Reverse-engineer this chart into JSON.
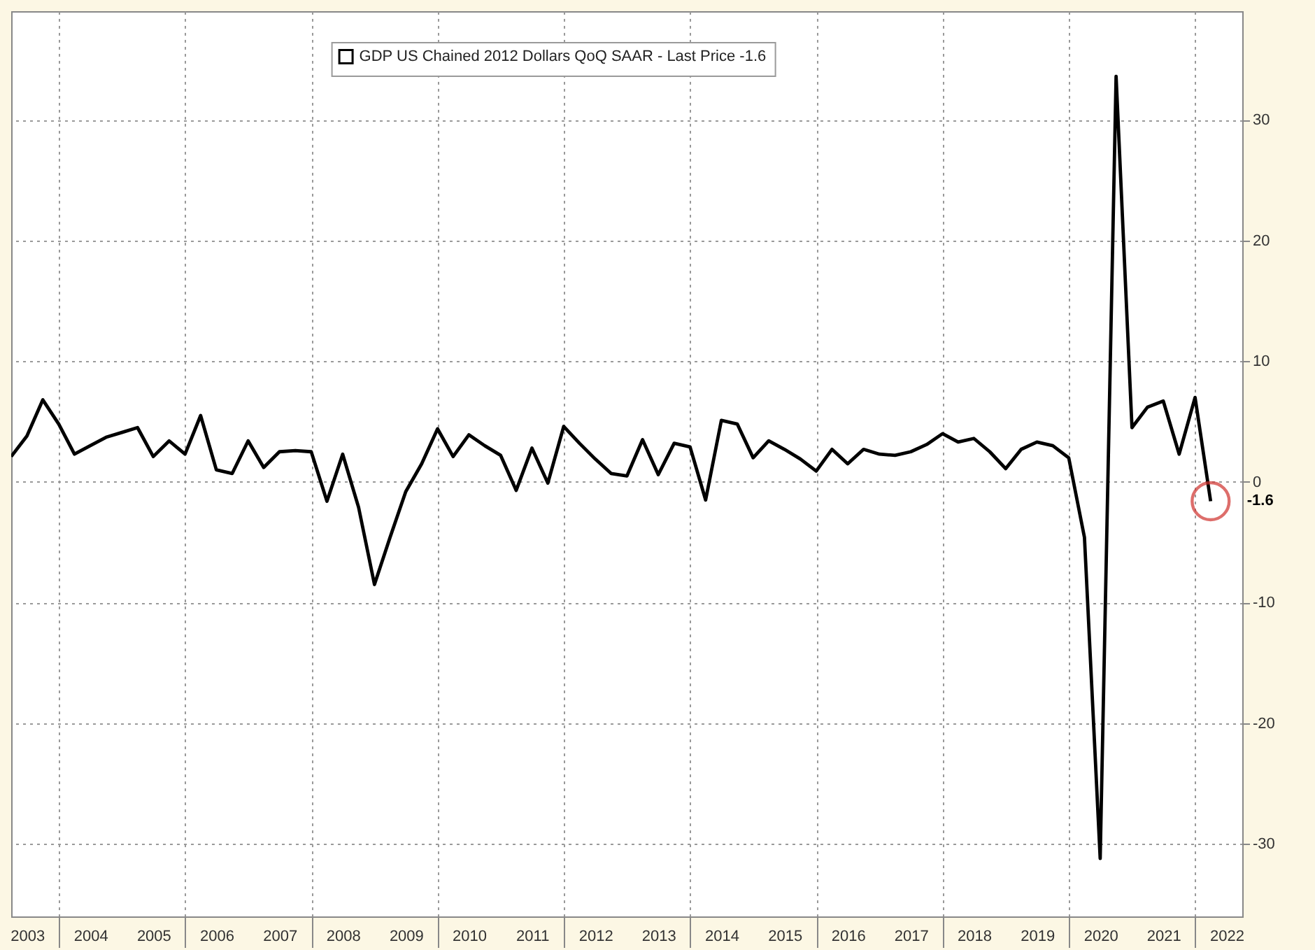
{
  "chart_data": {
    "type": "line",
    "x": [
      "2003-03-31",
      "2003-06-30",
      "2003-09-30",
      "2003-12-31",
      "2004-03-31",
      "2004-06-30",
      "2004-09-30",
      "2004-12-31",
      "2005-03-31",
      "2005-06-30",
      "2005-09-30",
      "2005-12-31",
      "2006-03-31",
      "2006-06-30",
      "2006-09-30",
      "2006-12-31",
      "2007-03-31",
      "2007-06-30",
      "2007-09-30",
      "2007-12-31",
      "2008-03-31",
      "2008-06-30",
      "2008-09-30",
      "2008-12-31",
      "2009-03-31",
      "2009-06-30",
      "2009-09-30",
      "2009-12-31",
      "2010-03-31",
      "2010-06-30",
      "2010-09-30",
      "2010-12-31",
      "2011-03-31",
      "2011-06-30",
      "2011-09-30",
      "2011-12-31",
      "2012-03-31",
      "2012-06-30",
      "2012-09-30",
      "2012-12-31",
      "2013-03-31",
      "2013-06-30",
      "2013-09-30",
      "2013-12-31",
      "2014-03-31",
      "2014-06-30",
      "2014-09-30",
      "2014-12-31",
      "2015-03-31",
      "2015-06-30",
      "2015-09-30",
      "2015-12-31",
      "2016-03-31",
      "2016-06-30",
      "2016-09-30",
      "2016-12-31",
      "2017-03-31",
      "2017-06-30",
      "2017-09-30",
      "2017-12-31",
      "2018-03-31",
      "2018-06-30",
      "2018-09-30",
      "2018-12-31",
      "2019-03-31",
      "2019-06-30",
      "2019-09-30",
      "2019-12-31",
      "2020-03-31",
      "2020-06-30",
      "2020-09-30",
      "2020-12-31",
      "2021-03-31",
      "2021-06-30",
      "2021-09-30",
      "2021-12-31",
      "2022-03-31"
    ],
    "series": [
      {
        "name": "GDP US Chained 2012 Dollars QoQ SAAR - Last Price -1.6",
        "color": "#000000",
        "values": [
          2.1,
          3.8,
          6.8,
          4.8,
          2.3,
          3.0,
          3.7,
          4.1,
          4.5,
          2.1,
          3.4,
          2.3,
          5.5,
          1.0,
          0.7,
          3.4,
          1.2,
          2.5,
          2.6,
          2.5,
          -1.6,
          2.3,
          -2.1,
          -8.5,
          -4.6,
          -0.8,
          1.5,
          4.4,
          2.1,
          3.9,
          3.0,
          2.2,
          -0.7,
          2.8,
          -0.1,
          4.6,
          3.2,
          1.9,
          0.7,
          0.5,
          3.5,
          0.6,
          3.2,
          2.9,
          -1.5,
          5.1,
          4.8,
          2.0,
          3.4,
          2.7,
          1.9,
          0.9,
          2.7,
          1.5,
          2.7,
          2.3,
          2.2,
          2.5,
          3.1,
          4.0,
          3.3,
          3.6,
          2.5,
          1.1,
          2.7,
          3.3,
          3.0,
          2.0,
          -4.6,
          -31.2,
          33.6,
          4.5,
          6.2,
          6.7,
          2.3,
          7.0,
          -1.6
        ]
      }
    ],
    "xlim": [
      "2003-03-31",
      "2022-09-30"
    ],
    "xticks": [
      {
        "value": "2003-07-01",
        "label": "2003"
      },
      {
        "value": "2004-01-01",
        "label": null
      },
      {
        "value": "2004-07-01",
        "label": "2004"
      },
      {
        "value": "2005-07-01",
        "label": "2005"
      },
      {
        "value": "2006-01-01",
        "label": null
      },
      {
        "value": "2006-07-01",
        "label": "2006"
      },
      {
        "value": "2007-07-01",
        "label": "2007"
      },
      {
        "value": "2008-01-01",
        "label": null
      },
      {
        "value": "2008-07-01",
        "label": "2008"
      },
      {
        "value": "2009-07-01",
        "label": "2009"
      },
      {
        "value": "2010-01-01",
        "label": null
      },
      {
        "value": "2010-07-01",
        "label": "2010"
      },
      {
        "value": "2011-07-01",
        "label": "2011"
      },
      {
        "value": "2012-01-01",
        "label": null
      },
      {
        "value": "2012-07-01",
        "label": "2012"
      },
      {
        "value": "2013-07-01",
        "label": "2013"
      },
      {
        "value": "2014-01-01",
        "label": null
      },
      {
        "value": "2014-07-01",
        "label": "2014"
      },
      {
        "value": "2015-07-01",
        "label": "2015"
      },
      {
        "value": "2016-01-01",
        "label": null
      },
      {
        "value": "2016-07-01",
        "label": "2016"
      },
      {
        "value": "2017-07-01",
        "label": "2017"
      },
      {
        "value": "2018-01-01",
        "label": null
      },
      {
        "value": "2018-07-01",
        "label": "2018"
      },
      {
        "value": "2019-07-01",
        "label": "2019"
      },
      {
        "value": "2020-01-01",
        "label": null
      },
      {
        "value": "2020-07-01",
        "label": "2020"
      },
      {
        "value": "2021-07-01",
        "label": "2021"
      },
      {
        "value": "2022-01-01",
        "label": null
      },
      {
        "value": "2022-07-01",
        "label": "2022"
      }
    ],
    "ylim": [
      -36,
      39
    ],
    "yticks": [
      -30,
      -20,
      -10,
      0,
      10,
      20,
      30
    ],
    "grid": true,
    "legend": "top",
    "line_style": "solid",
    "annotations": [
      {
        "text": "-1.6",
        "x": "2022-03-31",
        "y": -1.6
      }
    ]
  }
}
